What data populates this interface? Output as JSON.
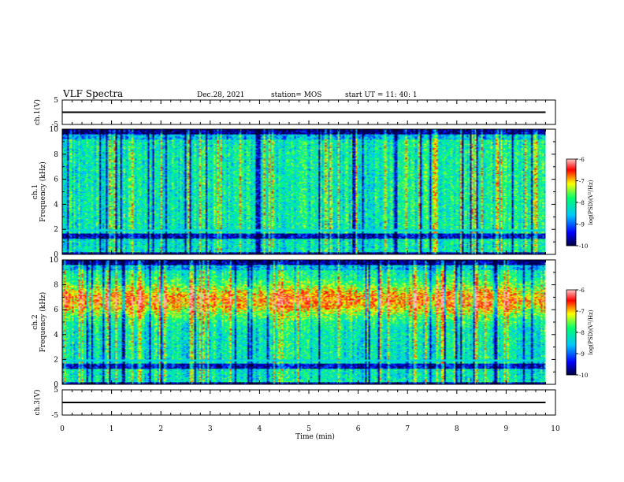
{
  "header": {
    "title": "VLF Spectra",
    "date": "Dec.28, 2021",
    "station": "station= MOS",
    "start_ut": "start UT =   11: 40: 1"
  },
  "chart_data": [
    {
      "type": "line",
      "panel": "ch1-voltage",
      "ylabel": "ch.1(V)",
      "y_ticks": [
        "5",
        "-5"
      ],
      "ylim": [
        -5,
        5
      ],
      "xlim": [
        0,
        10
      ],
      "x": [
        0,
        9.8
      ],
      "values": [
        0,
        0
      ]
    },
    {
      "type": "heatmap",
      "panel": "ch1-spectrogram",
      "ylabel": "ch.1\nFrequency (kHz)",
      "y_ticks": [
        "0",
        "2",
        "4",
        "6",
        "8",
        "10"
      ],
      "ylim": [
        0,
        10
      ],
      "xlim": [
        0,
        9.8
      ],
      "colorbar": {
        "label": "log(PSD)(V²/Hz)",
        "ticks": [
          "-6",
          "-7",
          "-8",
          "-9",
          "-10"
        ],
        "range": [
          -10,
          -6
        ]
      }
    },
    {
      "type": "heatmap",
      "panel": "ch2-spectrogram",
      "ylabel": "ch.2\nFrequency (kHz)",
      "y_ticks": [
        "0",
        "2",
        "4",
        "6",
        "8",
        "10"
      ],
      "ylim": [
        0,
        10
      ],
      "xlim": [
        0,
        9.8
      ],
      "colorbar": {
        "label": "log(PSD)(V²/Hz)",
        "ticks": [
          "-6",
          "-7",
          "-8",
          "-9",
          "-10"
        ],
        "range": [
          -10,
          -6
        ]
      }
    },
    {
      "type": "line",
      "panel": "ch3-voltage",
      "ylabel": "ch.3(V)",
      "y_ticks": [
        "5",
        "-5"
      ],
      "ylim": [
        -5,
        5
      ],
      "xlim": [
        0,
        10
      ],
      "x": [
        0,
        9.8
      ],
      "values": [
        0,
        0
      ]
    }
  ],
  "x_axis": {
    "label": "Time (min)",
    "ticks": [
      "0",
      "1",
      "2",
      "3",
      "4",
      "5",
      "6",
      "7",
      "8",
      "9",
      "10"
    ]
  },
  "colors": {
    "frame": "#000000",
    "cmap": [
      "#000060",
      "#0000ff",
      "#00c8ff",
      "#00ff80",
      "#ffff00",
      "#ff0000",
      "#ffb0b0"
    ]
  }
}
